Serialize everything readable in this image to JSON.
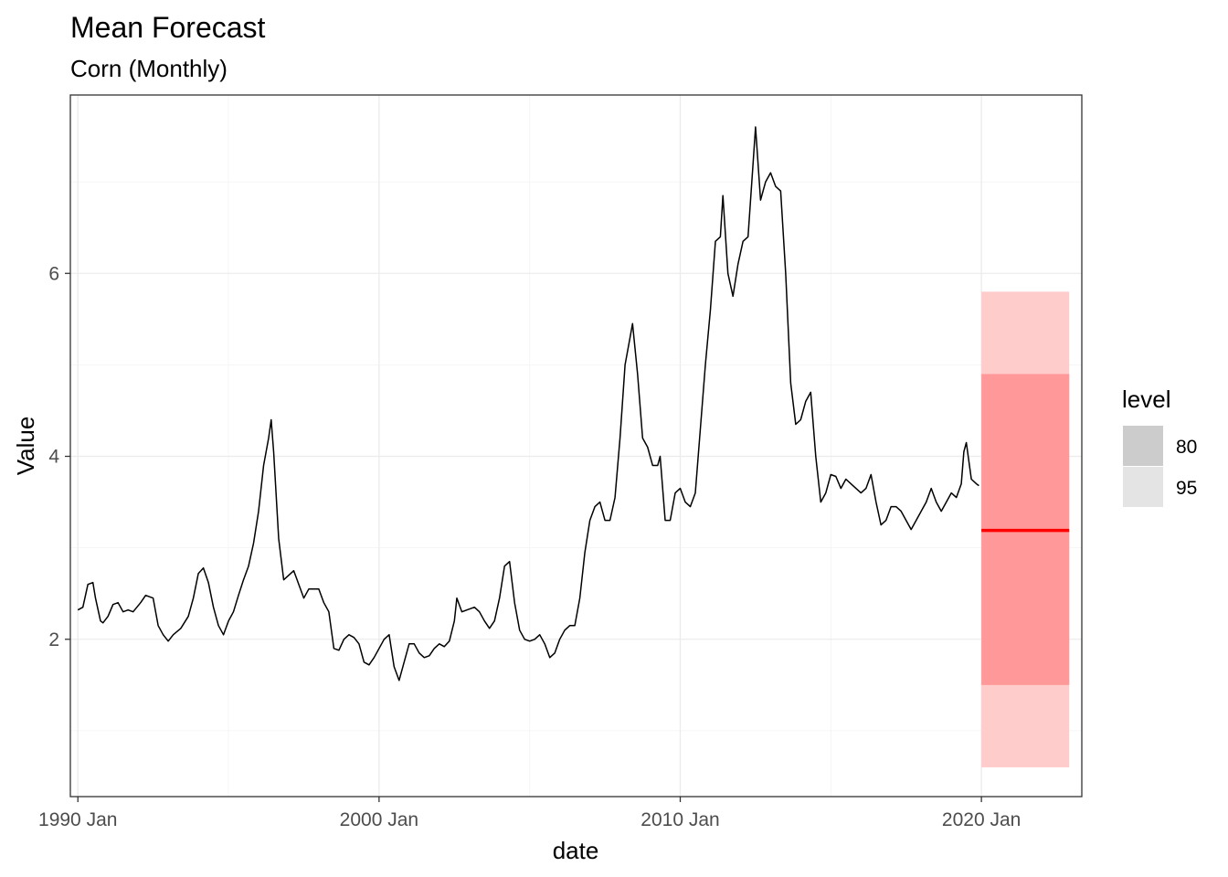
{
  "chart_data": {
    "type": "line",
    "title": "Mean Forecast",
    "subtitle": "Corn (Monthly)",
    "xlabel": "date",
    "ylabel": "Value",
    "x_ticks": [
      "1990 Jan",
      "2000 Jan",
      "2010 Jan",
      "2020 Jan"
    ],
    "y_ticks": [
      2,
      4,
      6
    ],
    "xlim": [
      "1989-10",
      "2023-05"
    ],
    "ylim": [
      0.28,
      7.95
    ],
    "grid": true,
    "legend": {
      "title": "level",
      "placement": "right",
      "items": [
        {
          "label": "80",
          "color": "#cccccc"
        },
        {
          "label": "95",
          "color": "#e4e4e4"
        }
      ]
    },
    "series": [
      {
        "type": "line",
        "color": "#000000",
        "points": [
          [
            "1990-01",
            2.32
          ],
          [
            "1990-03",
            2.35
          ],
          [
            "1990-05",
            2.6
          ],
          [
            "1990-07",
            2.62
          ],
          [
            "1990-08",
            2.45
          ],
          [
            "1990-10",
            2.2
          ],
          [
            "1990-11",
            2.18
          ],
          [
            "1991-01",
            2.25
          ],
          [
            "1991-03",
            2.38
          ],
          [
            "1991-05",
            2.4
          ],
          [
            "1991-07",
            2.3
          ],
          [
            "1991-09",
            2.32
          ],
          [
            "1991-11",
            2.3
          ],
          [
            "1992-02",
            2.4
          ],
          [
            "1992-04",
            2.48
          ],
          [
            "1992-07",
            2.45
          ],
          [
            "1992-09",
            2.15
          ],
          [
            "1992-11",
            2.05
          ],
          [
            "1993-01",
            1.98
          ],
          [
            "1993-03",
            2.05
          ],
          [
            "1993-06",
            2.12
          ],
          [
            "1993-09",
            2.25
          ],
          [
            "1993-11",
            2.45
          ],
          [
            "1994-01",
            2.72
          ],
          [
            "1994-03",
            2.78
          ],
          [
            "1994-05",
            2.62
          ],
          [
            "1994-07",
            2.35
          ],
          [
            "1994-09",
            2.15
          ],
          [
            "1994-11",
            2.05
          ],
          [
            "1995-01",
            2.2
          ],
          [
            "1995-03",
            2.3
          ],
          [
            "1995-05",
            2.48
          ],
          [
            "1995-07",
            2.65
          ],
          [
            "1995-09",
            2.8
          ],
          [
            "1995-11",
            3.05
          ],
          [
            "1996-01",
            3.4
          ],
          [
            "1996-03",
            3.9
          ],
          [
            "1996-05",
            4.2
          ],
          [
            "1996-06",
            4.4
          ],
          [
            "1996-07",
            4.05
          ],
          [
            "1996-09",
            3.1
          ],
          [
            "1996-11",
            2.65
          ],
          [
            "1997-01",
            2.7
          ],
          [
            "1997-03",
            2.75
          ],
          [
            "1997-05",
            2.6
          ],
          [
            "1997-07",
            2.45
          ],
          [
            "1997-09",
            2.55
          ],
          [
            "1997-11",
            2.55
          ],
          [
            "1998-01",
            2.55
          ],
          [
            "1998-03",
            2.4
          ],
          [
            "1998-05",
            2.3
          ],
          [
            "1998-07",
            1.9
          ],
          [
            "1998-09",
            1.88
          ],
          [
            "1998-11",
            2.0
          ],
          [
            "1999-01",
            2.05
          ],
          [
            "1999-03",
            2.02
          ],
          [
            "1999-05",
            1.95
          ],
          [
            "1999-07",
            1.75
          ],
          [
            "1999-09",
            1.72
          ],
          [
            "1999-11",
            1.8
          ],
          [
            "2000-01",
            1.9
          ],
          [
            "2000-03",
            2.0
          ],
          [
            "2000-05",
            2.05
          ],
          [
            "2000-07",
            1.7
          ],
          [
            "2000-09",
            1.55
          ],
          [
            "2000-11",
            1.75
          ],
          [
            "2001-01",
            1.95
          ],
          [
            "2001-03",
            1.95
          ],
          [
            "2001-05",
            1.85
          ],
          [
            "2001-07",
            1.8
          ],
          [
            "2001-09",
            1.82
          ],
          [
            "2001-11",
            1.9
          ],
          [
            "2002-01",
            1.95
          ],
          [
            "2002-03",
            1.92
          ],
          [
            "2002-05",
            1.98
          ],
          [
            "2002-07",
            2.2
          ],
          [
            "2002-08",
            2.45
          ],
          [
            "2002-10",
            2.3
          ],
          [
            "2002-12",
            2.32
          ],
          [
            "2003-03",
            2.35
          ],
          [
            "2003-05",
            2.3
          ],
          [
            "2003-07",
            2.2
          ],
          [
            "2003-09",
            2.12
          ],
          [
            "2003-11",
            2.2
          ],
          [
            "2004-01",
            2.45
          ],
          [
            "2004-03",
            2.8
          ],
          [
            "2004-05",
            2.85
          ],
          [
            "2004-07",
            2.4
          ],
          [
            "2004-09",
            2.1
          ],
          [
            "2004-11",
            2.0
          ],
          [
            "2005-01",
            1.98
          ],
          [
            "2005-03",
            2.0
          ],
          [
            "2005-05",
            2.05
          ],
          [
            "2005-07",
            1.95
          ],
          [
            "2005-09",
            1.8
          ],
          [
            "2005-11",
            1.85
          ],
          [
            "2006-01",
            2.0
          ],
          [
            "2006-03",
            2.1
          ],
          [
            "2006-05",
            2.15
          ],
          [
            "2006-07",
            2.15
          ],
          [
            "2006-09",
            2.45
          ],
          [
            "2006-11",
            2.95
          ],
          [
            "2007-01",
            3.3
          ],
          [
            "2007-03",
            3.45
          ],
          [
            "2007-05",
            3.5
          ],
          [
            "2007-07",
            3.3
          ],
          [
            "2007-09",
            3.3
          ],
          [
            "2007-11",
            3.55
          ],
          [
            "2008-01",
            4.2
          ],
          [
            "2008-03",
            5.0
          ],
          [
            "2008-05",
            5.3
          ],
          [
            "2008-06",
            5.45
          ],
          [
            "2008-08",
            4.9
          ],
          [
            "2008-10",
            4.2
          ],
          [
            "2008-12",
            4.1
          ],
          [
            "2009-02",
            3.9
          ],
          [
            "2009-04",
            3.9
          ],
          [
            "2009-05",
            4.0
          ],
          [
            "2009-07",
            3.3
          ],
          [
            "2009-09",
            3.3
          ],
          [
            "2009-11",
            3.6
          ],
          [
            "2010-01",
            3.65
          ],
          [
            "2010-03",
            3.5
          ],
          [
            "2010-05",
            3.45
          ],
          [
            "2010-07",
            3.6
          ],
          [
            "2010-09",
            4.3
          ],
          [
            "2010-11",
            5.0
          ],
          [
            "2011-01",
            5.6
          ],
          [
            "2011-03",
            6.35
          ],
          [
            "2011-05",
            6.4
          ],
          [
            "2011-06",
            6.85
          ],
          [
            "2011-08",
            6.0
          ],
          [
            "2011-10",
            5.75
          ],
          [
            "2011-12",
            6.1
          ],
          [
            "2012-02",
            6.35
          ],
          [
            "2012-04",
            6.4
          ],
          [
            "2012-06",
            7.2
          ],
          [
            "2012-07",
            7.6
          ],
          [
            "2012-09",
            6.8
          ],
          [
            "2012-11",
            7.0
          ],
          [
            "2013-01",
            7.1
          ],
          [
            "2013-03",
            6.95
          ],
          [
            "2013-05",
            6.9
          ],
          [
            "2013-07",
            6.0
          ],
          [
            "2013-09",
            4.8
          ],
          [
            "2013-11",
            4.35
          ],
          [
            "2014-01",
            4.4
          ],
          [
            "2014-03",
            4.6
          ],
          [
            "2014-05",
            4.7
          ],
          [
            "2014-07",
            4.0
          ],
          [
            "2014-09",
            3.5
          ],
          [
            "2014-11",
            3.6
          ],
          [
            "2015-01",
            3.8
          ],
          [
            "2015-03",
            3.78
          ],
          [
            "2015-05",
            3.65
          ],
          [
            "2015-07",
            3.75
          ],
          [
            "2015-09",
            3.7
          ],
          [
            "2015-11",
            3.65
          ],
          [
            "2016-01",
            3.6
          ],
          [
            "2016-03",
            3.65
          ],
          [
            "2016-05",
            3.8
          ],
          [
            "2016-07",
            3.5
          ],
          [
            "2016-09",
            3.25
          ],
          [
            "2016-11",
            3.3
          ],
          [
            "2017-01",
            3.45
          ],
          [
            "2017-03",
            3.45
          ],
          [
            "2017-05",
            3.4
          ],
          [
            "2017-07",
            3.3
          ],
          [
            "2017-09",
            3.2
          ],
          [
            "2017-11",
            3.3
          ],
          [
            "2018-01",
            3.4
          ],
          [
            "2018-03",
            3.5
          ],
          [
            "2018-05",
            3.65
          ],
          [
            "2018-07",
            3.5
          ],
          [
            "2018-09",
            3.4
          ],
          [
            "2018-11",
            3.5
          ],
          [
            "2019-01",
            3.6
          ],
          [
            "2019-03",
            3.55
          ],
          [
            "2019-05",
            3.7
          ],
          [
            "2019-06",
            4.05
          ],
          [
            "2019-07",
            4.15
          ],
          [
            "2019-09",
            3.75
          ],
          [
            "2019-11",
            3.7
          ],
          [
            "2019-12",
            3.68
          ]
        ]
      },
      {
        "type": "forecast-mean",
        "color": "#ff0000",
        "x": [
          "2020-01",
          "2022-12"
        ],
        "y": 3.19
      }
    ],
    "bands": [
      {
        "level": "95",
        "x": [
          "2020-01",
          "2022-12"
        ],
        "low": 0.6,
        "high": 5.8,
        "color": "#ffcccc"
      },
      {
        "level": "80",
        "x": [
          "2020-01",
          "2022-12"
        ],
        "low": 1.5,
        "high": 4.9,
        "color": "#ff9999"
      }
    ]
  }
}
